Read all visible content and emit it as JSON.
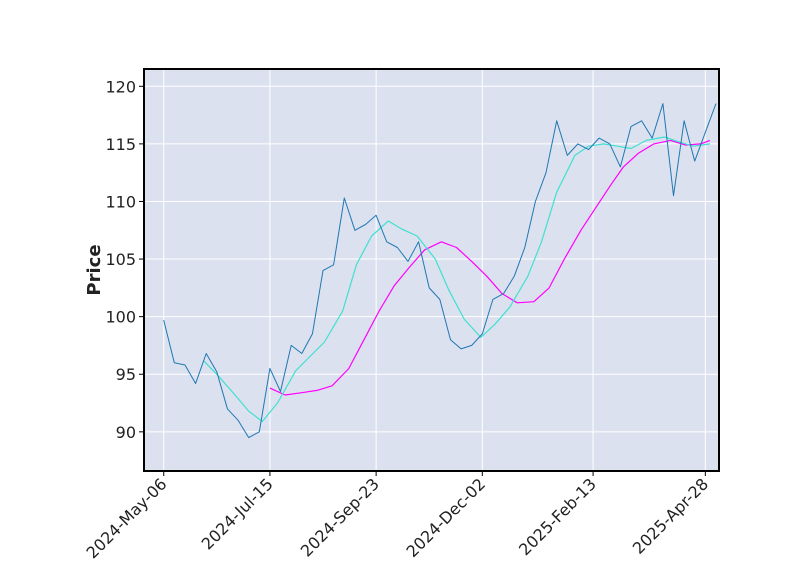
{
  "chart_data": {
    "type": "line",
    "title": "",
    "xlabel": "",
    "ylabel": "Price",
    "ylim": [
      86.6,
      121.5
    ],
    "xlim": [
      "2024-04-23",
      "2025-05-07"
    ],
    "grid": true,
    "legend": "none",
    "colors": {
      "plot_bg": "#dce1ef",
      "price": "#1f77b4",
      "ma_short": "#40e0d0",
      "ma_long": "#ff00ff",
      "grid": "#ffffff",
      "frame": "#000000"
    },
    "x_ticks": [
      "2024-May-06",
      "2024-Jul-15",
      "2024-Sep-23",
      "2024-Dec-02",
      "2025-Feb-13",
      "2025-Apr-28"
    ],
    "y_ticks": [
      90,
      95,
      100,
      105,
      110,
      115,
      120
    ],
    "series": [
      {
        "key": "price",
        "x": [
          "2024-05-06",
          "2024-05-13",
          "2024-05-20",
          "2024-05-27",
          "2024-06-03",
          "2024-06-10",
          "2024-06-17",
          "2024-06-24",
          "2024-07-01",
          "2024-07-08",
          "2024-07-15",
          "2024-07-22",
          "2024-07-29",
          "2024-08-05",
          "2024-08-12",
          "2024-08-19",
          "2024-08-26",
          "2024-09-02",
          "2024-09-09",
          "2024-09-16",
          "2024-09-23",
          "2024-09-30",
          "2024-10-07",
          "2024-10-14",
          "2024-10-21",
          "2024-10-28",
          "2024-11-04",
          "2024-11-11",
          "2024-11-18",
          "2024-11-25",
          "2024-12-02",
          "2024-12-09",
          "2024-12-16",
          "2024-12-23",
          "2024-12-30",
          "2025-01-06",
          "2025-01-13",
          "2025-01-20",
          "2025-01-27",
          "2025-02-03",
          "2025-02-10",
          "2025-02-17",
          "2025-02-24",
          "2025-03-03",
          "2025-03-10",
          "2025-03-17",
          "2025-03-24",
          "2025-03-31",
          "2025-04-07",
          "2025-04-14",
          "2025-04-21",
          "2025-04-28",
          "2025-05-05"
        ],
        "values": [
          99.7,
          96.0,
          95.8,
          94.2,
          96.8,
          95.2,
          92.0,
          91.0,
          89.5,
          90.0,
          95.5,
          93.5,
          97.5,
          96.8,
          98.5,
          104.0,
          104.5,
          110.3,
          107.5,
          108.0,
          108.8,
          106.5,
          106.0,
          104.8,
          106.5,
          102.5,
          101.5,
          98.0,
          97.2,
          97.5,
          98.5,
          101.5,
          102.0,
          103.5,
          106.0,
          110.0,
          112.5,
          117.0,
          114.0,
          115.0,
          114.5,
          115.5,
          115.0,
          113.0,
          116.5,
          117.0,
          115.5,
          118.5,
          110.5,
          117.0,
          113.5,
          116.0,
          118.5
        ]
      },
      {
        "key": "ma_short",
        "x": [
          "2024-06-01",
          "2024-06-10",
          "2024-06-20",
          "2024-07-01",
          "2024-07-10",
          "2024-07-20",
          "2024-08-01",
          "2024-08-10",
          "2024-08-20",
          "2024-09-01",
          "2024-09-10",
          "2024-09-20",
          "2024-10-01",
          "2024-10-10",
          "2024-10-20",
          "2024-11-01",
          "2024-11-10",
          "2024-11-20",
          "2024-12-01",
          "2024-12-10",
          "2024-12-20",
          "2025-01-01",
          "2025-01-10",
          "2025-01-20",
          "2025-02-01",
          "2025-02-10",
          "2025-02-20",
          "2025-03-01",
          "2025-03-10",
          "2025-03-20",
          "2025-04-01",
          "2025-04-10",
          "2025-04-20",
          "2025-05-01"
        ],
        "values": [
          96.2,
          95.0,
          93.5,
          91.8,
          90.9,
          92.5,
          95.3,
          96.5,
          97.8,
          100.5,
          104.5,
          107.0,
          108.3,
          107.6,
          107.0,
          105.0,
          102.3,
          99.8,
          98.2,
          99.3,
          100.8,
          103.5,
          106.5,
          110.8,
          114.0,
          114.8,
          115.0,
          114.8,
          114.6,
          115.3,
          115.6,
          115.2,
          114.8,
          115.0
        ]
      },
      {
        "key": "ma_long",
        "x": [
          "2024-07-15",
          "2024-07-25",
          "2024-08-05",
          "2024-08-15",
          "2024-08-25",
          "2024-09-05",
          "2024-09-15",
          "2024-09-25",
          "2024-10-05",
          "2024-10-15",
          "2024-10-25",
          "2024-11-05",
          "2024-11-15",
          "2024-11-25",
          "2024-12-05",
          "2024-12-15",
          "2024-12-25",
          "2025-01-05",
          "2025-01-15",
          "2025-01-25",
          "2025-02-05",
          "2025-02-15",
          "2025-02-25",
          "2025-03-05",
          "2025-03-15",
          "2025-03-25",
          "2025-04-05",
          "2025-04-15",
          "2025-04-25",
          "2025-05-01"
        ],
        "values": [
          93.8,
          93.2,
          93.4,
          93.6,
          94.0,
          95.5,
          98.0,
          100.5,
          102.7,
          104.3,
          105.8,
          106.5,
          106.0,
          104.8,
          103.5,
          102.0,
          101.2,
          101.3,
          102.5,
          105.0,
          107.5,
          109.5,
          111.5,
          113.0,
          114.2,
          115.0,
          115.3,
          114.9,
          115.0,
          115.3
        ]
      }
    ]
  }
}
